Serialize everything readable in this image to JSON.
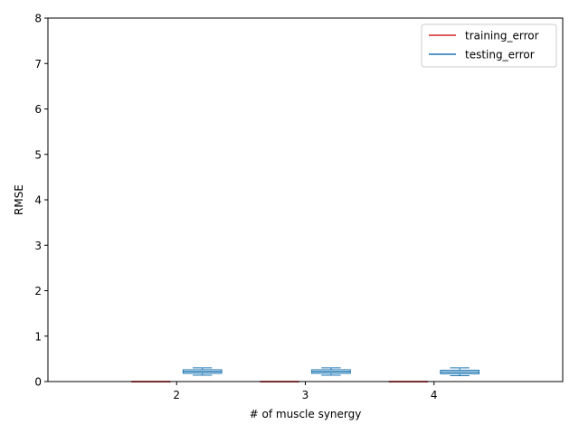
{
  "chart_data": {
    "type": "box",
    "title": "",
    "xlabel": "# of muscle synergy",
    "ylabel": "RMSE",
    "categories": [
      "2",
      "3",
      "4"
    ],
    "xlim": [
      1,
      5
    ],
    "ylim": [
      0,
      8
    ],
    "yticks": [
      0,
      1,
      2,
      3,
      4,
      5,
      6,
      7,
      8
    ],
    "grid": false,
    "legend_position": "top-right",
    "series": [
      {
        "name": "training_error",
        "color": "#d62728",
        "offset": -0.2,
        "boxes": [
          {
            "whislo": 0.0,
            "q1": 0.0,
            "med": 0.0,
            "q3": 0.0,
            "whishi": 0.0
          },
          {
            "whislo": 0.0,
            "q1": 0.0,
            "med": 0.0,
            "q3": 0.0,
            "whishi": 0.0
          },
          {
            "whislo": 0.0,
            "q1": 0.0,
            "med": 0.0,
            "q3": 0.0,
            "whishi": 0.0
          }
        ]
      },
      {
        "name": "testing_error",
        "color": "#1f77b4",
        "offset": 0.2,
        "boxes": [
          {
            "whislo": 0.14,
            "q1": 0.18,
            "med": 0.22,
            "q3": 0.26,
            "whishi": 0.3
          },
          {
            "whislo": 0.14,
            "q1": 0.18,
            "med": 0.22,
            "q3": 0.26,
            "whishi": 0.3
          },
          {
            "whislo": 0.13,
            "q1": 0.17,
            "med": 0.21,
            "q3": 0.25,
            "whishi": 0.3
          }
        ]
      }
    ]
  }
}
